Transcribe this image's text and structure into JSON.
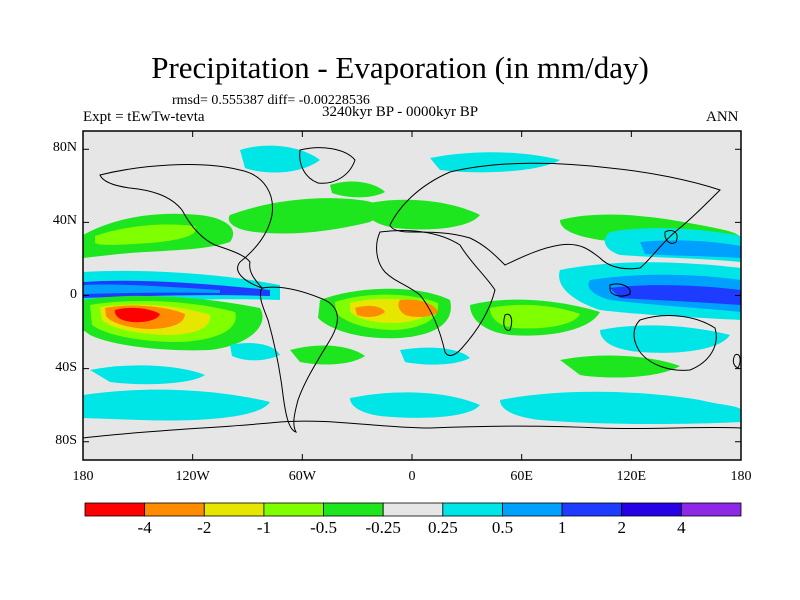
{
  "header": {
    "title": "Precipitation - Evaporation (in mm/day)",
    "stats": "rmsd= 0.555387 diff= -0.00228536",
    "experiment": "Expt = tEwTw-tevta",
    "period": "3240kyr BP - 0000kyr BP",
    "season": "ANN"
  },
  "axes": {
    "y_ticks": [
      "80N",
      "40N",
      "0",
      "40S",
      "80S"
    ],
    "y_values": [
      80,
      40,
      0,
      -40,
      -80
    ],
    "x_ticks": [
      "180",
      "120W",
      "60W",
      "0",
      "60E",
      "120E",
      "180"
    ],
    "x_values": [
      -180,
      -120,
      -60,
      0,
      60,
      120,
      180
    ]
  },
  "colorbar": {
    "labels": [
      "-4",
      "-2",
      "-1",
      "-0.5",
      "-0.25",
      "0.25",
      "0.5",
      "1",
      "2",
      "4"
    ],
    "colors": [
      "#ff0000",
      "#ff8c00",
      "#e6e600",
      "#80ff00",
      "#1ee61e",
      "#e6e6e6",
      "#00e6e6",
      "#00a0ff",
      "#1e3cff",
      "#2800e6",
      "#8c28e6"
    ]
  },
  "colors": {
    "background": "#e6e6e6",
    "coast": "#000000"
  }
}
